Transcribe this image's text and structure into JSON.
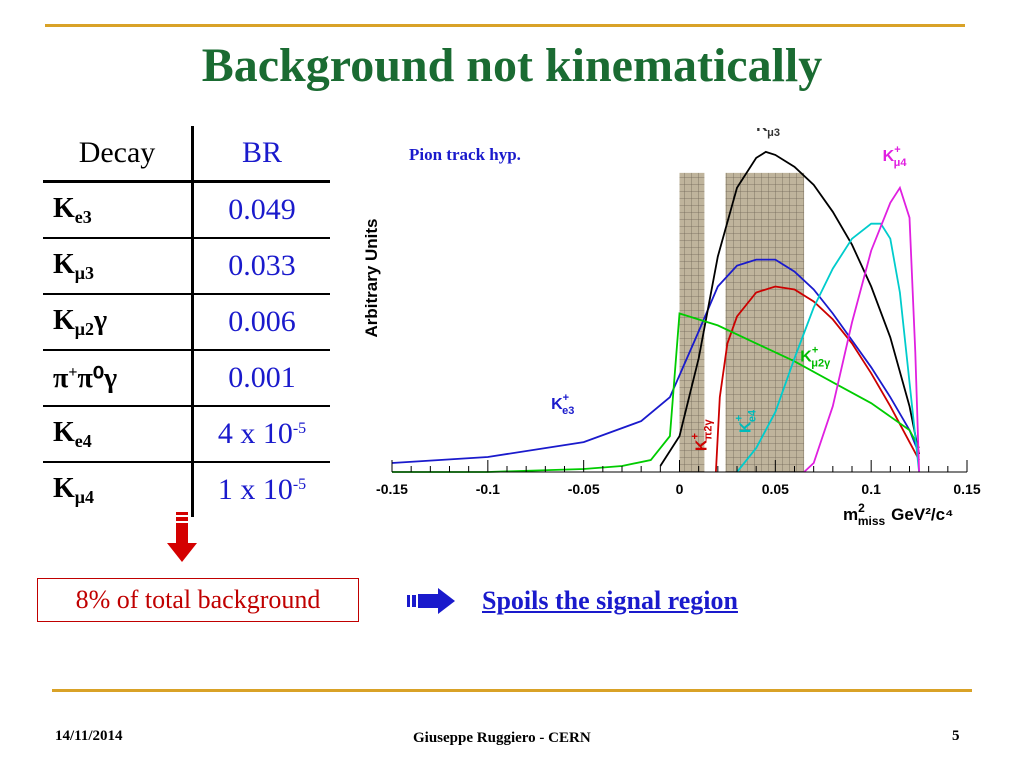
{
  "slide": {
    "title": "Background not kinematically",
    "table": {
      "header_decay": "Decay",
      "header_br": "BR",
      "rows": [
        {
          "base": "K",
          "sub": "e3",
          "sup": "",
          "post": "",
          "br": "0.049",
          "br_sup": ""
        },
        {
          "base": "K",
          "sub": "μ3",
          "sup": "",
          "post": "",
          "br": "0.033",
          "br_sup": ""
        },
        {
          "base": "K",
          "sub": "μ2",
          "sup": "",
          "post": "γ",
          "br": "0.006",
          "br_sup": ""
        },
        {
          "base": "π",
          "sub": "",
          "sup": "+",
          "post": "π⁰γ",
          "br": "0.001",
          "br_sup": ""
        },
        {
          "base": "K",
          "sub": "e4",
          "sup": "",
          "post": "",
          "br": "4 x 10",
          "br_sup": "-5"
        },
        {
          "base": "K",
          "sub": "μ4",
          "sup": "",
          "post": "",
          "br": "1 x 10",
          "br_sup": "-5"
        }
      ]
    },
    "callout": "8% of total background",
    "arrow_text": "Spoils the signal region",
    "footer": {
      "date": "14/11/2014",
      "author": "Giuseppe Ruggiero - CERN",
      "page": "5"
    },
    "colors": {
      "title": "#1a6b32",
      "rule": "#d9a227",
      "blue_text": "#1a1acc",
      "red": "#c00000"
    }
  },
  "chart_data": {
    "type": "line",
    "annotation": "Pion track hyp.",
    "ylabel": "Arbitrary Units",
    "xlabel_main": "m",
    "xlabel_sup": "2",
    "xlabel_sub": "miss",
    "xlabel_unit": "GeV²/c⁴",
    "xlim": [
      -0.15,
      0.15
    ],
    "ylim": [
      0,
      1.15
    ],
    "xticks": [
      -0.15,
      -0.1,
      -0.05,
      0,
      0.05,
      0.1,
      0.15
    ],
    "xtick_labels": [
      "-0.15",
      "-0.1",
      "-0.05",
      "0",
      "0.05",
      "0.1",
      "0.15"
    ],
    "signal_regions": [
      [
        0,
        0.013
      ],
      [
        0.024,
        0.065
      ]
    ],
    "series": [
      {
        "name": "K+ e3",
        "color": "#1a1acc",
        "x": [
          -0.15,
          -0.1,
          -0.05,
          -0.02,
          -0.005,
          0.01,
          0.02,
          0.03,
          0.04,
          0.05,
          0.06,
          0.07,
          0.08,
          0.09,
          0.1,
          0.11,
          0.12,
          0.125
        ],
        "y": [
          0.03,
          0.05,
          0.1,
          0.17,
          0.25,
          0.47,
          0.62,
          0.69,
          0.71,
          0.71,
          0.67,
          0.61,
          0.53,
          0.44,
          0.35,
          0.25,
          0.14,
          0.06
        ]
      },
      {
        "name": "K+ μ3",
        "color": "#000000",
        "x": [
          -0.01,
          0,
          0.01,
          0.02,
          0.03,
          0.04,
          0.045,
          0.05,
          0.06,
          0.07,
          0.08,
          0.09,
          0.1,
          0.11,
          0.12,
          0.125
        ],
        "y": [
          0.02,
          0.12,
          0.38,
          0.72,
          0.95,
          1.05,
          1.07,
          1.06,
          1.02,
          0.96,
          0.87,
          0.76,
          0.62,
          0.45,
          0.22,
          0.06
        ]
      },
      {
        "name": "K+ π2γ",
        "color": "#cc0000",
        "x": [
          0.019,
          0.021,
          0.025,
          0.03,
          0.04,
          0.05,
          0.06,
          0.07,
          0.08,
          0.09,
          0.1,
          0.11,
          0.12,
          0.125
        ],
        "y": [
          0.0,
          0.25,
          0.43,
          0.52,
          0.6,
          0.62,
          0.61,
          0.57,
          0.51,
          0.43,
          0.33,
          0.22,
          0.1,
          0.04
        ]
      },
      {
        "name": "K+ μ2γ",
        "color": "#00cc00",
        "x": [
          -0.15,
          -0.1,
          -0.05,
          -0.03,
          -0.015,
          -0.005,
          0.0,
          0.02,
          0.04,
          0.06,
          0.08,
          0.1,
          0.12,
          0.125
        ],
        "y": [
          0.0,
          0.0,
          0.01,
          0.02,
          0.04,
          0.12,
          0.53,
          0.49,
          0.43,
          0.37,
          0.3,
          0.23,
          0.14,
          0.08
        ]
      },
      {
        "name": "K+ e4",
        "color": "#00cccc",
        "x": [
          0.03,
          0.04,
          0.05,
          0.06,
          0.07,
          0.08,
          0.09,
          0.1,
          0.105,
          0.11,
          0.115,
          0.12,
          0.125
        ],
        "y": [
          0.0,
          0.08,
          0.2,
          0.38,
          0.55,
          0.68,
          0.78,
          0.83,
          0.83,
          0.78,
          0.6,
          0.3,
          0.0
        ]
      },
      {
        "name": "K+ μ4",
        "color": "#e020e0",
        "x": [
          0.065,
          0.07,
          0.08,
          0.09,
          0.1,
          0.11,
          0.115,
          0.12,
          0.123,
          0.125
        ],
        "y": [
          0.0,
          0.03,
          0.22,
          0.5,
          0.74,
          0.9,
          0.95,
          0.85,
          0.4,
          0.0
        ]
      }
    ],
    "labels": [
      {
        "base": "K",
        "sup": "+",
        "sub": "e3",
        "color": "#1a1acc"
      },
      {
        "base": "K",
        "sup": "+",
        "sub": "μ3",
        "color": "#333333"
      },
      {
        "base": "K",
        "sup": "+",
        "sub": "μ4",
        "color": "#e020e0"
      },
      {
        "base": "K",
        "sup": "+",
        "sub": "μ2γ",
        "color": "#00bb00"
      },
      {
        "base": "K",
        "sup": "+",
        "sub": "π2γ",
        "color": "#cc0000"
      },
      {
        "base": "K",
        "sup": "+",
        "sub": "e4",
        "color": "#00bbbb"
      }
    ]
  }
}
